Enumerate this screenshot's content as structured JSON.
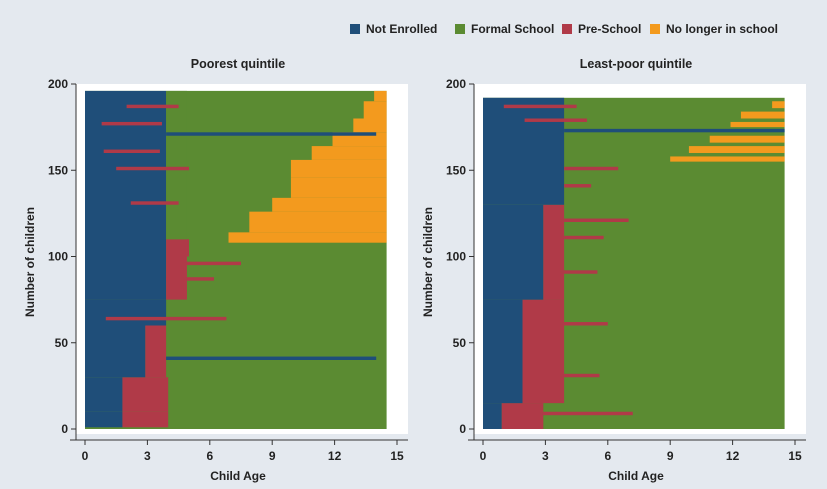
{
  "legend": [
    {
      "label": "Not Enrolled",
      "color": "#1f4e79"
    },
    {
      "label": "Formal School",
      "color": "#5b8b32"
    },
    {
      "label": "Pre-School",
      "color": "#b03a48"
    },
    {
      "label": "No longer in school",
      "color": "#f39a1e"
    }
  ],
  "chart_data": [
    {
      "type": "bar",
      "title": "Poorest quintile",
      "xlabel": "Child Age",
      "ylabel": "Number of children",
      "xlim": [
        0,
        15
      ],
      "ylim": [
        0,
        200
      ],
      "xticks": [
        "0",
        "3",
        "6",
        "9",
        "12",
        "15"
      ],
      "yticks": [
        "0",
        "50",
        "100",
        "150",
        "200"
      ],
      "n_children": 196,
      "colors": {
        "not_enrolled": "#1f4e79",
        "formal_school": "#5b8b32",
        "pre_school": "#b03a48",
        "no_longer_in_school": "#f39a1e"
      },
      "segments": [
        {
          "rows": [
            0,
            196
          ],
          "state": "formal_school",
          "from": 0,
          "to": 14.5
        },
        {
          "rows": [
            0,
            10
          ],
          "state": "not_enrolled",
          "from": 0,
          "to": 1.8
        },
        {
          "rows": [
            0,
            10
          ],
          "state": "pre_school",
          "from": 1.8,
          "to": 4.0
        },
        {
          "rows": [
            10,
            30
          ],
          "state": "not_enrolled",
          "from": 0,
          "to": 1.8
        },
        {
          "rows": [
            10,
            30
          ],
          "state": "pre_school",
          "from": 1.8,
          "to": 4.0
        },
        {
          "rows": [
            30,
            60
          ],
          "state": "not_enrolled",
          "from": 0,
          "to": 2.9
        },
        {
          "rows": [
            30,
            60
          ],
          "state": "pre_school",
          "from": 2.9,
          "to": 3.9
        },
        {
          "rows": [
            60,
            75
          ],
          "state": "not_enrolled",
          "from": 0,
          "to": 3.9
        },
        {
          "rows": [
            75,
            100
          ],
          "state": "not_enrolled",
          "from": 0,
          "to": 3.9
        },
        {
          "rows": [
            75,
            100
          ],
          "state": "pre_school",
          "from": 3.9,
          "to": 4.9
        },
        {
          "rows": [
            100,
            196
          ],
          "state": "not_enrolled",
          "from": 0,
          "to": 3.9
        },
        {
          "rows": [
            100,
            110
          ],
          "state": "pre_school",
          "from": 3.9,
          "to": 5.0
        },
        {
          "rows": [
            110,
            196
          ],
          "state": "formal_school",
          "from": 3.9,
          "to": 4.9
        },
        {
          "rows": [
            108,
            114
          ],
          "state": "no_longer_in_school",
          "from": 6.9,
          "to": 14.5
        },
        {
          "rows": [
            114,
            120
          ],
          "state": "no_longer_in_school",
          "from": 7.9,
          "to": 14.5
        },
        {
          "rows": [
            120,
            126
          ],
          "state": "no_longer_in_school",
          "from": 7.9,
          "to": 14.5
        },
        {
          "rows": [
            126,
            134
          ],
          "state": "no_longer_in_school",
          "from": 9.0,
          "to": 14.5
        },
        {
          "rows": [
            134,
            146
          ],
          "state": "no_longer_in_school",
          "from": 9.9,
          "to": 14.5
        },
        {
          "rows": [
            146,
            156
          ],
          "state": "no_longer_in_school",
          "from": 9.9,
          "to": 14.5
        },
        {
          "rows": [
            156,
            164
          ],
          "state": "no_longer_in_school",
          "from": 10.9,
          "to": 14.5
        },
        {
          "rows": [
            164,
            172
          ],
          "state": "no_longer_in_school",
          "from": 11.9,
          "to": 14.5
        },
        {
          "rows": [
            172,
            180
          ],
          "state": "no_longer_in_school",
          "from": 12.9,
          "to": 14.5
        },
        {
          "rows": [
            180,
            190
          ],
          "state": "no_longer_in_school",
          "from": 13.4,
          "to": 14.5
        },
        {
          "rows": [
            190,
            196
          ],
          "state": "no_longer_in_school",
          "from": 13.9,
          "to": 14.5
        },
        {
          "rows": [
            170,
            172
          ],
          "state": "not_enrolled",
          "from": 3.9,
          "to": 14.0
        },
        {
          "rows": [
            40,
            42
          ],
          "state": "not_enrolled",
          "from": 3.9,
          "to": 14.0
        },
        {
          "rows": [
            63,
            65
          ],
          "state": "pre_school",
          "from": 1.0,
          "to": 6.8
        },
        {
          "rows": [
            86,
            88
          ],
          "state": "pre_school",
          "from": 3.9,
          "to": 6.2
        },
        {
          "rows": [
            95,
            97
          ],
          "state": "pre_school",
          "from": 4.5,
          "to": 7.5
        },
        {
          "rows": [
            176,
            178
          ],
          "state": "pre_school",
          "from": 0.8,
          "to": 3.7
        },
        {
          "rows": [
            186,
            188
          ],
          "state": "pre_school",
          "from": 2.0,
          "to": 4.5
        },
        {
          "rows": [
            150,
            152
          ],
          "state": "pre_school",
          "from": 1.5,
          "to": 5.0
        },
        {
          "rows": [
            130,
            132
          ],
          "state": "pre_school",
          "from": 2.2,
          "to": 4.5
        },
        {
          "rows": [
            160,
            162
          ],
          "state": "pre_school",
          "from": 0.9,
          "to": 3.6
        },
        {
          "rows": [
            0,
            1
          ],
          "state": "formal_school",
          "from": 0,
          "to": 5.0
        }
      ]
    },
    {
      "type": "bar",
      "title": "Least-poor quintile",
      "xlabel": "Child Age",
      "ylabel": "Number of children",
      "xlim": [
        0,
        15
      ],
      "ylim": [
        0,
        200
      ],
      "xticks": [
        "0",
        "3",
        "6",
        "9",
        "12",
        "15"
      ],
      "yticks": [
        "0",
        "50",
        "100",
        "150",
        "200"
      ],
      "n_children": 192,
      "colors": {
        "not_enrolled": "#1f4e79",
        "formal_school": "#5b8b32",
        "pre_school": "#b03a48",
        "no_longer_in_school": "#f39a1e"
      },
      "segments": [
        {
          "rows": [
            0,
            192
          ],
          "state": "formal_school",
          "from": 0,
          "to": 14.5
        },
        {
          "rows": [
            0,
            15
          ],
          "state": "not_enrolled",
          "from": 0,
          "to": 0.9
        },
        {
          "rows": [
            0,
            15
          ],
          "state": "pre_school",
          "from": 0.9,
          "to": 2.9
        },
        {
          "rows": [
            15,
            75
          ],
          "state": "not_enrolled",
          "from": 0,
          "to": 1.9
        },
        {
          "rows": [
            15,
            75
          ],
          "state": "pre_school",
          "from": 1.9,
          "to": 3.9
        },
        {
          "rows": [
            75,
            130
          ],
          "state": "not_enrolled",
          "from": 0,
          "to": 2.9
        },
        {
          "rows": [
            75,
            130
          ],
          "state": "pre_school",
          "from": 2.9,
          "to": 3.9
        },
        {
          "rows": [
            130,
            192
          ],
          "state": "not_enrolled",
          "from": 0,
          "to": 3.9
        },
        {
          "rows": [
            172,
            174
          ],
          "state": "not_enrolled",
          "from": 3.9,
          "to": 14.5
        },
        {
          "rows": [
            155,
            158
          ],
          "state": "no_longer_in_school",
          "from": 9.0,
          "to": 14.5
        },
        {
          "rows": [
            160,
            164
          ],
          "state": "no_longer_in_school",
          "from": 9.9,
          "to": 14.5
        },
        {
          "rows": [
            166,
            170
          ],
          "state": "no_longer_in_school",
          "from": 10.9,
          "to": 14.5
        },
        {
          "rows": [
            175,
            178
          ],
          "state": "no_longer_in_school",
          "from": 11.9,
          "to": 14.5
        },
        {
          "rows": [
            180,
            184
          ],
          "state": "no_longer_in_school",
          "from": 12.4,
          "to": 14.5
        },
        {
          "rows": [
            186,
            190
          ],
          "state": "no_longer_in_school",
          "from": 13.9,
          "to": 14.5
        },
        {
          "rows": [
            186,
            188
          ],
          "state": "pre_school",
          "from": 1.0,
          "to": 4.5
        },
        {
          "rows": [
            178,
            180
          ],
          "state": "pre_school",
          "from": 2.0,
          "to": 5.0
        },
        {
          "rows": [
            150,
            152
          ],
          "state": "pre_school",
          "from": 3.9,
          "to": 6.5
        },
        {
          "rows": [
            140,
            142
          ],
          "state": "pre_school",
          "from": 3.9,
          "to": 5.2
        },
        {
          "rows": [
            120,
            122
          ],
          "state": "pre_school",
          "from": 3.9,
          "to": 7.0
        },
        {
          "rows": [
            110,
            112
          ],
          "state": "pre_school",
          "from": 3.9,
          "to": 5.8
        },
        {
          "rows": [
            90,
            92
          ],
          "state": "pre_school",
          "from": 3.0,
          "to": 5.5
        },
        {
          "rows": [
            60,
            62
          ],
          "state": "pre_school",
          "from": 2.0,
          "to": 6.0
        },
        {
          "rows": [
            30,
            32
          ],
          "state": "pre_school",
          "from": 2.0,
          "to": 5.6
        },
        {
          "rows": [
            8,
            10
          ],
          "state": "pre_school",
          "from": 2.8,
          "to": 7.2
        }
      ]
    }
  ]
}
